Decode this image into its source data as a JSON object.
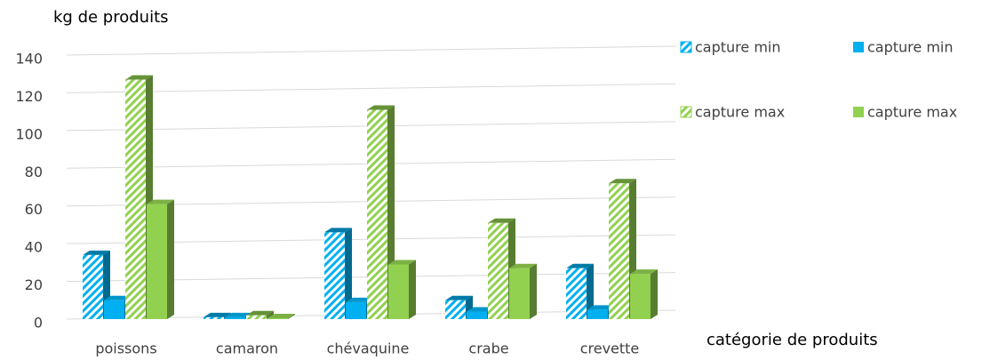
{
  "chart_data": {
    "type": "bar3d",
    "y_axis_label": "kg de produits",
    "x_axis_label": "catégorie de produits",
    "categories": [
      "poissons",
      "camaron",
      "chévaquine",
      "crabe",
      "crevette"
    ],
    "series": [
      {
        "name": "capture min",
        "color": "#00b0f0",
        "hatched": true,
        "values": [
          34,
          1,
          46,
          10,
          27
        ]
      },
      {
        "name": "capture min",
        "color": "#00b0f0",
        "hatched": false,
        "values": [
          10,
          1,
          9,
          4,
          5
        ]
      },
      {
        "name": "capture max",
        "color": "#92d050",
        "hatched": true,
        "values": [
          127,
          2,
          111,
          51,
          72
        ]
      },
      {
        "name": "capture max",
        "color": "#92d050",
        "hatched": false,
        "values": [
          61,
          0.5,
          29,
          27,
          24
        ]
      }
    ],
    "ylim": [
      0,
      140
    ],
    "yticks": [
      0,
      20,
      40,
      60,
      80,
      100,
      120,
      140
    ],
    "grid": true
  }
}
